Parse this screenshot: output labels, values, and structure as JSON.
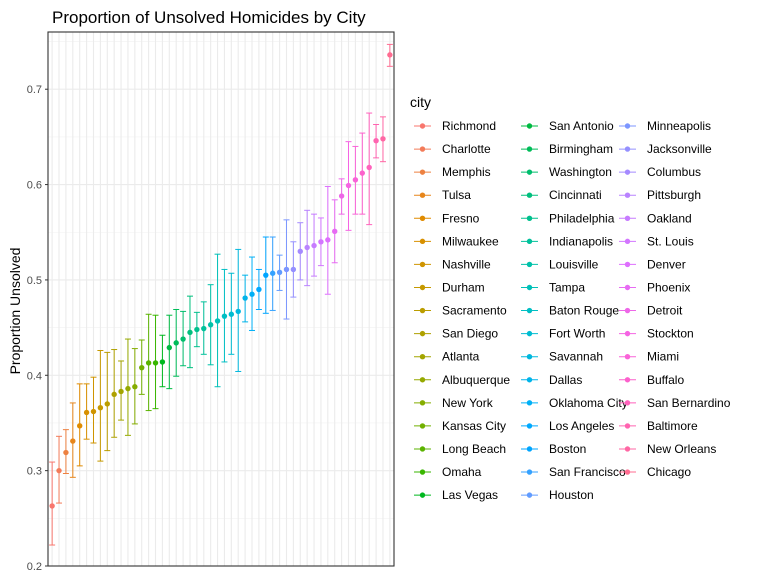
{
  "chart_data": {
    "type": "scatter",
    "title": "Proportion of Unsolved Homicides by City",
    "xlabel": "",
    "ylabel": "Proportion Unsolved",
    "ylim": [
      0.2,
      0.76
    ],
    "y_ticks": [
      "0.2",
      "0.3",
      "0.4",
      "0.5",
      "0.6",
      "0.7"
    ],
    "grid": true,
    "legend_title": "city",
    "legend_position": "right",
    "series": [
      {
        "city": "Richmond",
        "estimate": 0.263,
        "low": 0.222,
        "high": 0.309,
        "color": "#F8766D"
      },
      {
        "city": "Charlotte",
        "estimate": 0.3,
        "low": 0.266,
        "high": 0.336,
        "color": "#F37B59"
      },
      {
        "city": "Memphis",
        "estimate": 0.319,
        "low": 0.297,
        "high": 0.343,
        "color": "#ED8141"
      },
      {
        "city": "Tulsa",
        "estimate": 0.331,
        "low": 0.293,
        "high": 0.371,
        "color": "#E7861B"
      },
      {
        "city": "Fresno",
        "estimate": 0.347,
        "low": 0.305,
        "high": 0.391,
        "color": "#E08B00"
      },
      {
        "city": "Milwaukee",
        "estimate": 0.361,
        "low": 0.333,
        "high": 0.391,
        "color": "#D89000"
      },
      {
        "city": "Nashville",
        "estimate": 0.362,
        "low": 0.329,
        "high": 0.398,
        "color": "#CF9400"
      },
      {
        "city": "Durham",
        "estimate": 0.366,
        "low": 0.31,
        "high": 0.426,
        "color": "#C59900"
      },
      {
        "city": "Sacramento",
        "estimate": 0.37,
        "low": 0.321,
        "high": 0.424,
        "color": "#BB9D00"
      },
      {
        "city": "San Diego",
        "estimate": 0.38,
        "low": 0.335,
        "high": 0.427,
        "color": "#AFA100"
      },
      {
        "city": "Atlanta",
        "estimate": 0.383,
        "low": 0.353,
        "high": 0.415,
        "color": "#A3A500"
      },
      {
        "city": "Albuquerque",
        "estimate": 0.386,
        "low": 0.337,
        "high": 0.438,
        "color": "#95A900"
      },
      {
        "city": "New York",
        "estimate": 0.388,
        "low": 0.349,
        "high": 0.428,
        "color": "#85AD00"
      },
      {
        "city": "Kansas City",
        "estimate": 0.408,
        "low": 0.38,
        "high": 0.437,
        "color": "#72B000"
      },
      {
        "city": "Long Beach",
        "estimate": 0.413,
        "low": 0.363,
        "high": 0.464,
        "color": "#5BB300"
      },
      {
        "city": "Omaha",
        "estimate": 0.413,
        "low": 0.365,
        "high": 0.463,
        "color": "#39B600"
      },
      {
        "city": "Las Vegas",
        "estimate": 0.414,
        "low": 0.388,
        "high": 0.442,
        "color": "#00B81F"
      },
      {
        "city": "San Antonio",
        "estimate": 0.429,
        "low": 0.386,
        "high": 0.463,
        "color": "#00BA42"
      },
      {
        "city": "Birmingham",
        "estimate": 0.434,
        "low": 0.399,
        "high": 0.469,
        "color": "#00BC59"
      },
      {
        "city": "Washington",
        "estimate": 0.438,
        "low": 0.41,
        "high": 0.467,
        "color": "#00BD6D"
      },
      {
        "city": "Cincinnati",
        "estimate": 0.445,
        "low": 0.408,
        "high": 0.483,
        "color": "#00BF7D"
      },
      {
        "city": "Philadelphia",
        "estimate": 0.448,
        "low": 0.43,
        "high": 0.466,
        "color": "#00C08D"
      },
      {
        "city": "Indianapolis",
        "estimate": 0.449,
        "low": 0.422,
        "high": 0.477,
        "color": "#00C19B"
      },
      {
        "city": "Louisville",
        "estimate": 0.453,
        "low": 0.411,
        "high": 0.495,
        "color": "#00C1A9"
      },
      {
        "city": "Tampa",
        "estimate": 0.457,
        "low": 0.388,
        "high": 0.527,
        "color": "#00C0B8"
      },
      {
        "city": "Baton Rouge",
        "estimate": 0.462,
        "low": 0.414,
        "high": 0.511,
        "color": "#00BFC4"
      },
      {
        "city": "Fort Worth",
        "estimate": 0.464,
        "low": 0.422,
        "high": 0.507,
        "color": "#00BCD1"
      },
      {
        "city": "Savannah",
        "estimate": 0.467,
        "low": 0.404,
        "high": 0.532,
        "color": "#00B8DE"
      },
      {
        "city": "Dallas",
        "estimate": 0.481,
        "low": 0.456,
        "high": 0.505,
        "color": "#00B4EA"
      },
      {
        "city": "Oklahoma City",
        "estimate": 0.485,
        "low": 0.447,
        "high": 0.524,
        "color": "#00B0F6"
      },
      {
        "city": "Los Angeles",
        "estimate": 0.49,
        "low": 0.469,
        "high": 0.511,
        "color": "#00A9FF"
      },
      {
        "city": "Boston",
        "estimate": 0.505,
        "low": 0.465,
        "high": 0.545,
        "color": "#00A5FF"
      },
      {
        "city": "San Francisco",
        "estimate": 0.507,
        "low": 0.468,
        "high": 0.545,
        "color": "#35A2FF"
      },
      {
        "city": "Houston",
        "estimate": 0.508,
        "low": 0.489,
        "high": 0.526,
        "color": "#619CFF"
      },
      {
        "city": "Minneapolis",
        "estimate": 0.511,
        "low": 0.459,
        "high": 0.563,
        "color": "#7C96FF"
      },
      {
        "city": "Jacksonville",
        "estimate": 0.511,
        "low": 0.482,
        "high": 0.54,
        "color": "#9590FF"
      },
      {
        "city": "Columbus",
        "estimate": 0.53,
        "low": 0.5,
        "high": 0.56,
        "color": "#A58AFF"
      },
      {
        "city": "Pittsburgh",
        "estimate": 0.534,
        "low": 0.494,
        "high": 0.573,
        "color": "#B983FF"
      },
      {
        "city": "Oakland",
        "estimate": 0.536,
        "low": 0.504,
        "high": 0.569,
        "color": "#C77CFF"
      },
      {
        "city": "St. Louis",
        "estimate": 0.54,
        "low": 0.515,
        "high": 0.565,
        "color": "#D376FF"
      },
      {
        "city": "Denver",
        "estimate": 0.542,
        "low": 0.485,
        "high": 0.598,
        "color": "#DE6FFE"
      },
      {
        "city": "Phoenix",
        "estimate": 0.551,
        "low": 0.518,
        "high": 0.584,
        "color": "#E76BF3"
      },
      {
        "city": "Detroit",
        "estimate": 0.588,
        "low": 0.569,
        "high": 0.606,
        "color": "#EE67E8"
      },
      {
        "city": "Stockton",
        "estimate": 0.599,
        "low": 0.552,
        "high": 0.645,
        "color": "#F564E3"
      },
      {
        "city": "Miami",
        "estimate": 0.605,
        "low": 0.569,
        "high": 0.64,
        "color": "#F963D8"
      },
      {
        "city": "Buffalo",
        "estimate": 0.612,
        "low": 0.569,
        "high": 0.654,
        "color": "#FC61CC"
      },
      {
        "city": "San Bernardino",
        "estimate": 0.618,
        "low": 0.558,
        "high": 0.675,
        "color": "#FF62BC"
      },
      {
        "city": "Baltimore",
        "estimate": 0.646,
        "low": 0.628,
        "high": 0.663,
        "color": "#FF64B0"
      },
      {
        "city": "New Orleans",
        "estimate": 0.648,
        "low": 0.624,
        "high": 0.671,
        "color": "#FF67A4"
      },
      {
        "city": "Chicago",
        "estimate": 0.736,
        "low": 0.724,
        "high": 0.747,
        "color": "#FF6C91"
      }
    ]
  }
}
